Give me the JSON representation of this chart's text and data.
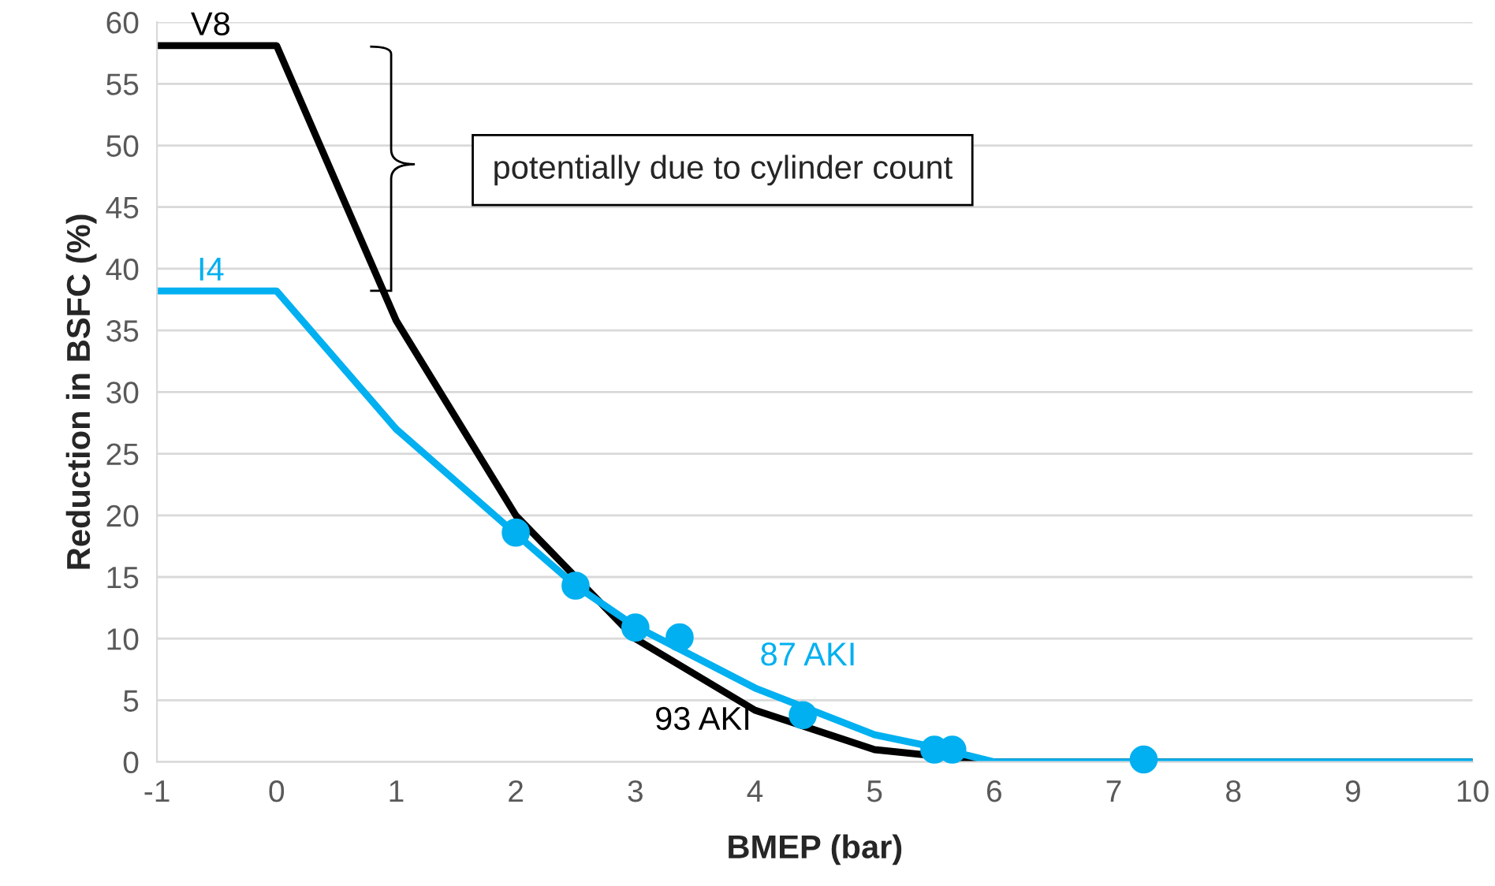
{
  "chart_data": {
    "type": "line",
    "xlabel": "BMEP (bar)",
    "ylabel": "Reduction in BSFC (%)",
    "xlim": [
      -1,
      10
    ],
    "xticks": [
      -1,
      0,
      1,
      2,
      3,
      4,
      5,
      6,
      7,
      8,
      9,
      10
    ],
    "ylim": [
      0,
      60
    ],
    "yticks": [
      0,
      5,
      10,
      15,
      20,
      25,
      30,
      35,
      40,
      45,
      50,
      55,
      60
    ],
    "grid": "y",
    "legend": false,
    "series": [
      {
        "name": "V8",
        "color": "#000000",
        "x": [
          -1,
          0,
          1,
          2,
          3,
          4,
          5,
          6,
          10
        ],
        "values": [
          58.1,
          58.1,
          35.8,
          20,
          10,
          4.2,
          1,
          0,
          0
        ]
      },
      {
        "name": "I4",
        "color": "#00b0f0",
        "x": [
          -1,
          0,
          1,
          2,
          2.5,
          3,
          4,
          5,
          5.5,
          6,
          10
        ],
        "values": [
          38.2,
          38.2,
          27,
          18.5,
          14.3,
          11,
          6,
          2.2,
          1.2,
          0,
          0
        ]
      },
      {
        "type": "scatter",
        "color": "#00b0f0",
        "marker": "circle",
        "x": [
          2,
          2.5,
          3,
          3.37,
          4.4,
          5.5,
          5.65,
          7.25
        ],
        "values": [
          18.6,
          14.3,
          10.9,
          10.1,
          3.8,
          1,
          1,
          0.2
        ]
      }
    ],
    "annotations": [
      "potentially due to cylinder count",
      "93 AKI",
      "87 AKI"
    ]
  }
}
